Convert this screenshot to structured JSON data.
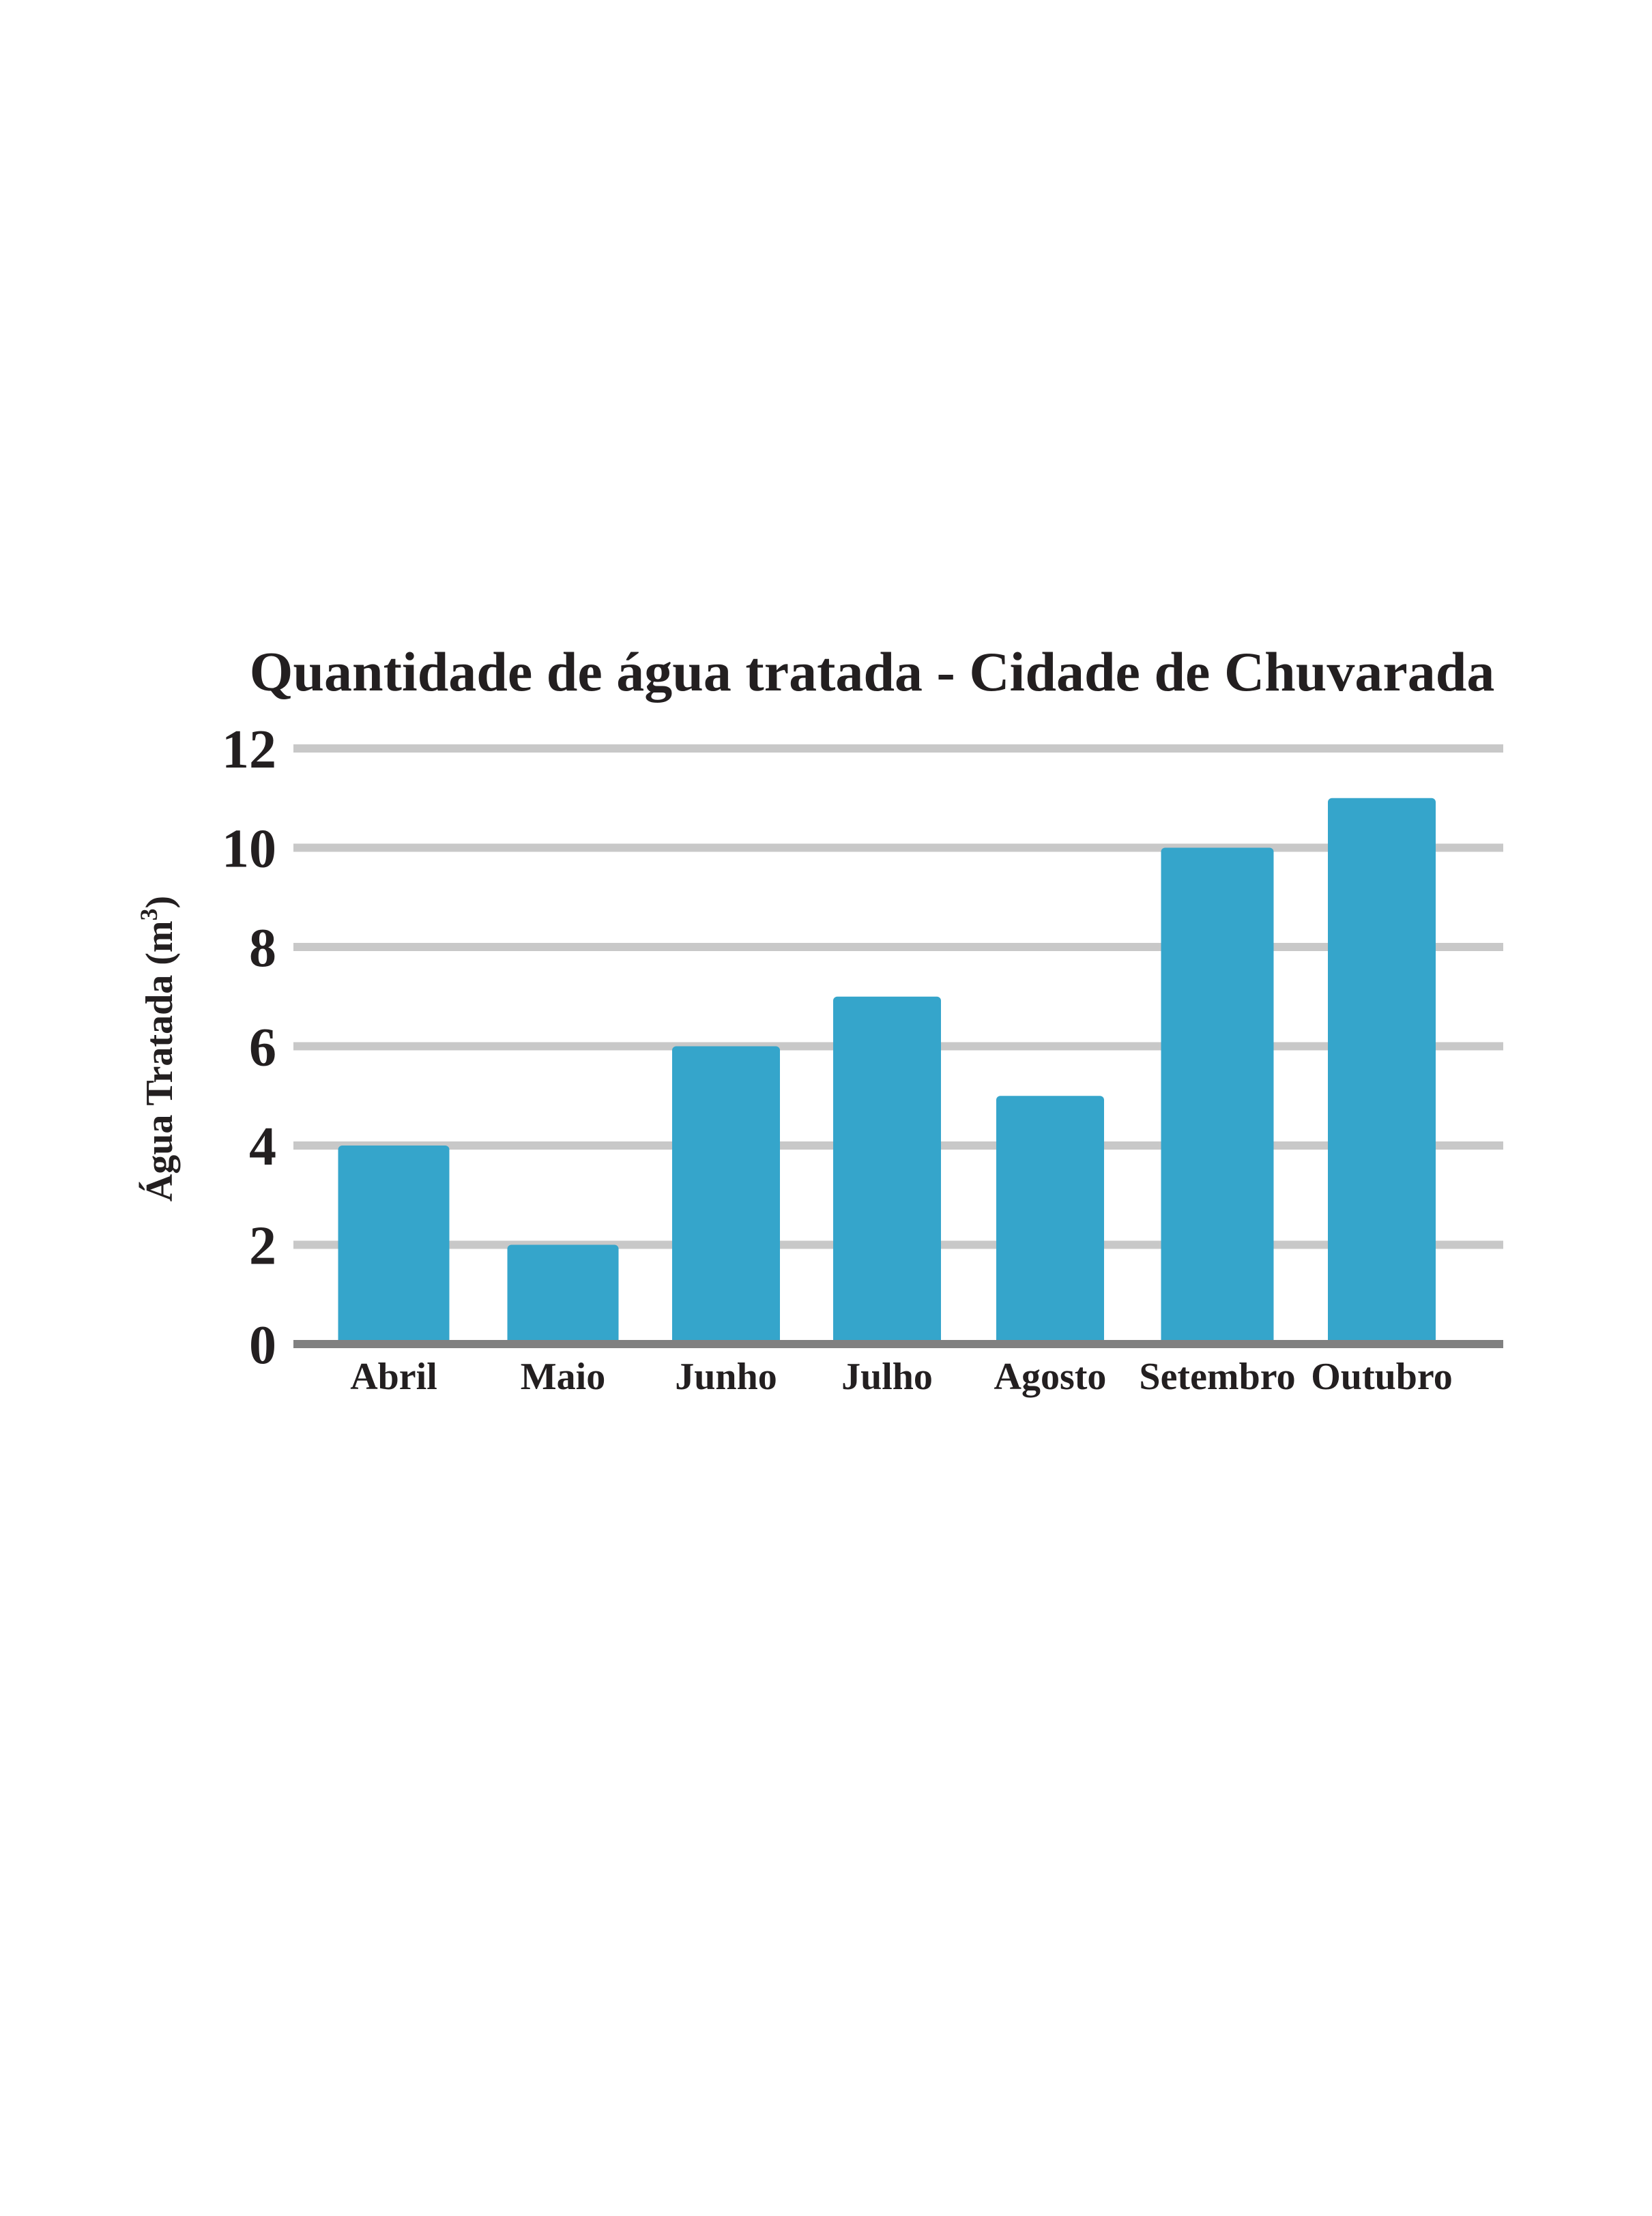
{
  "chart_data": {
    "type": "bar",
    "title": "Quantidade de água tratada - Cidade de Chuvarada",
    "xlabel": "",
    "ylabel": "Água Tratada (m",
    "ylabel_superscript": "3",
    "ylabel_close": ")",
    "categories": [
      "Abril",
      "Maio",
      "Junho",
      "Julho",
      "Agosto",
      "Setembro",
      "Outubro"
    ],
    "values": [
      4,
      2,
      6,
      7,
      5,
      10,
      11
    ],
    "ylim": [
      0,
      12
    ],
    "yticks": [
      "0",
      "2",
      "4",
      "6",
      "8",
      "10",
      "12"
    ],
    "grid": true,
    "legend": "none",
    "colors": {
      "bar": "#35a5cb",
      "grid": "#c8c8c8",
      "baseline": "#808080",
      "text": "#231f20"
    }
  }
}
